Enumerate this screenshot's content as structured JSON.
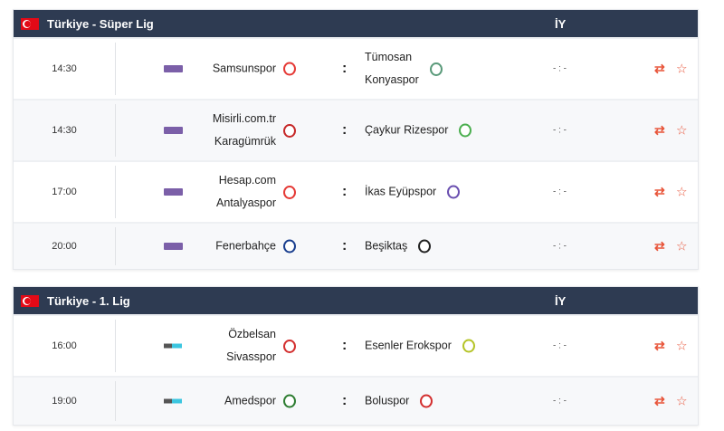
{
  "leagues": [
    {
      "name": "Türkiye - Süper Lig",
      "col": "İY",
      "matches": [
        {
          "time": "14:30",
          "channel": "bein",
          "home": [
            "Samsunspor"
          ],
          "away": [
            "Tümosan",
            "Konyaspor"
          ],
          "score": "- : -",
          "hc": "#e53935",
          "ac": "#5a9a7a"
        },
        {
          "time": "14:30",
          "channel": "bein",
          "home": [
            "Misirli.com.tr",
            "Karagümrük"
          ],
          "away": [
            "Çaykur Rizespor"
          ],
          "score": "- : -",
          "hc": "#c62828",
          "ac": "#4caf50"
        },
        {
          "time": "17:00",
          "channel": "bein",
          "home": [
            "Hesap.com",
            "Antalyaspor"
          ],
          "away": [
            "İkas Eyüpspor"
          ],
          "score": "- : -",
          "hc": "#e53935",
          "ac": "#6a4fb0"
        },
        {
          "time": "20:00",
          "channel": "bein",
          "home": [
            "Fenerbahçe"
          ],
          "away": [
            "Beşiktaş"
          ],
          "score": "- : -",
          "hc": "#1a3f8f",
          "ac": "#222222"
        }
      ]
    },
    {
      "name": "Türkiye - 1. Lig",
      "col": "İY",
      "matches": [
        {
          "time": "16:00",
          "channel": "trt",
          "home": [
            "Özbelsan",
            "Sivasspor"
          ],
          "away": [
            "Esenler Erokspor"
          ],
          "score": "- : -",
          "hc": "#d32f2f",
          "ac": "#b5c428"
        },
        {
          "time": "19:00",
          "channel": "trt",
          "home": [
            "Amedspor"
          ],
          "away": [
            "Boluspor"
          ],
          "score": "- : -",
          "hc": "#2e7d32",
          "ac": "#d32f2f"
        }
      ]
    }
  ],
  "icons": {
    "swap": "swap-icon",
    "favorite": "star-outline-icon"
  },
  "colors": {
    "header": "#2e3b52",
    "accent": "#e8553a"
  }
}
